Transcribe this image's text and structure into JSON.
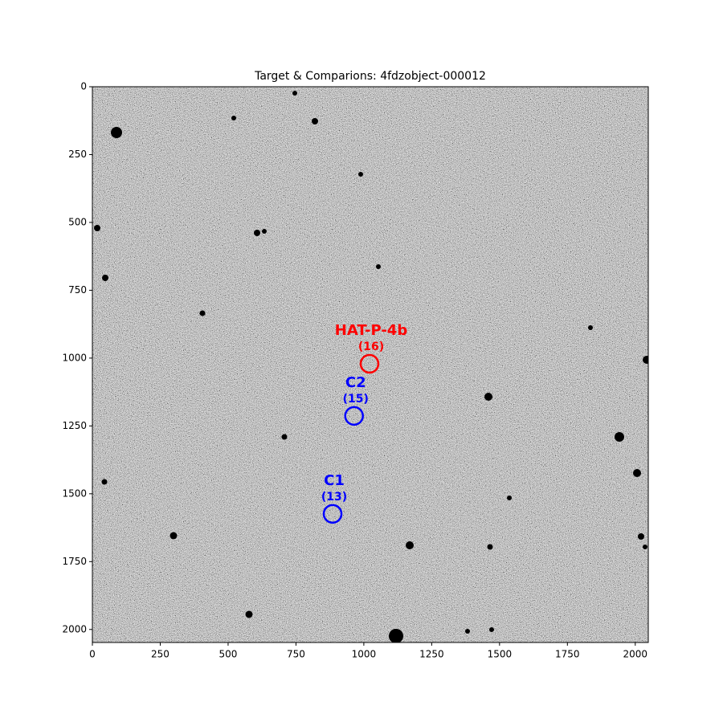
{
  "chart_data": {
    "type": "image",
    "title": "Target & Comparions: 4fdzobject-000012",
    "xlim": [
      0,
      2048
    ],
    "ylim": [
      2048,
      0
    ],
    "xticks": [
      0,
      250,
      500,
      750,
      1000,
      1250,
      1500,
      1750,
      2000
    ],
    "yticks": [
      0,
      250,
      500,
      750,
      1000,
      1250,
      1500,
      1750,
      2000
    ],
    "targets": [
      {
        "name": "HAT-P-4b",
        "label": "(16)",
        "color": "#ff0000",
        "x": 1021,
        "y": 1021
      },
      {
        "name": "C2",
        "label": "(15)",
        "color": "#0000ff",
        "x": 964,
        "y": 1213
      },
      {
        "name": "C1",
        "label": "(13)",
        "color": "#0000ff",
        "x": 885,
        "y": 1574
      }
    ]
  }
}
